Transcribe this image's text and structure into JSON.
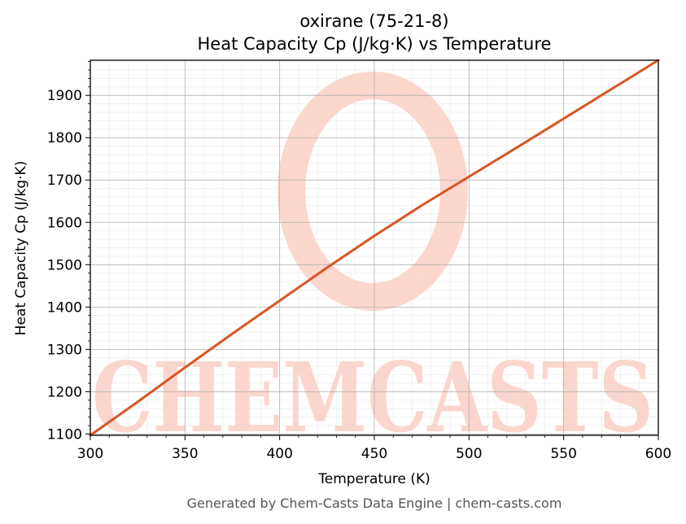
{
  "chart_data": {
    "type": "line",
    "title_line1": "oxirane (75-21-8)",
    "title_line2": "Heat Capacity Cp (J/kg·K) vs Temperature",
    "xlabel": "Temperature (K)",
    "ylabel": "Heat Capacity Cp (J/kg·K)",
    "xlim": [
      300,
      600
    ],
    "ylim": [
      1097,
      1983
    ],
    "x_ticks": [
      300,
      350,
      400,
      450,
      500,
      550,
      600
    ],
    "y_ticks": [
      1100,
      1200,
      1300,
      1400,
      1500,
      1600,
      1700,
      1800,
      1900
    ],
    "grid": true,
    "series": [
      {
        "color": "#d95525",
        "x": [
          300,
          325,
          350,
          375,
          400,
          425,
          450,
          475,
          500,
          525,
          550,
          575,
          600
        ],
        "y": [
          1097,
          1176,
          1257,
          1337,
          1415,
          1493,
          1568,
          1640,
          1708,
          1776,
          1845,
          1914,
          1983
        ]
      }
    ],
    "watermark": "CHEMCASTS",
    "watermark_color": "#fbd0c6"
  },
  "footer": "Generated by Chem-Casts Data Engine | chem-casts.com"
}
